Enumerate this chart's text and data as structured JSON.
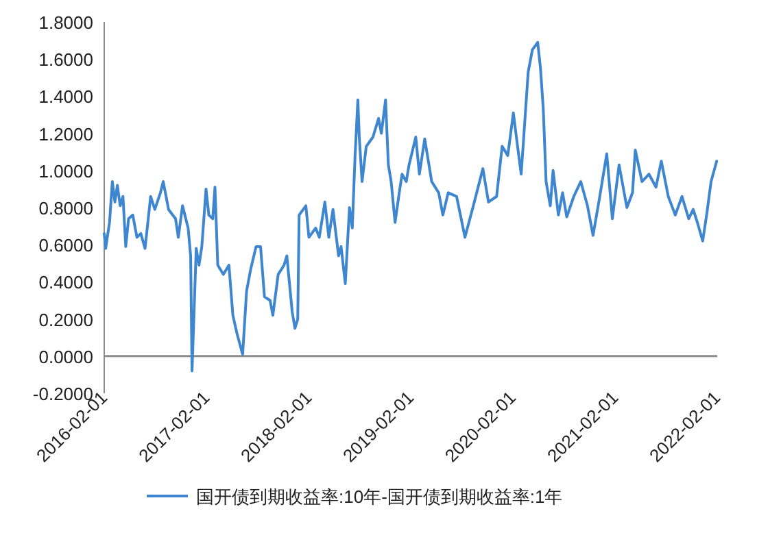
{
  "chart_data": {
    "type": "line",
    "x": [
      "2016-02-01",
      "2016-02-06",
      "2016-02-20",
      "2016-03-01",
      "2016-03-10",
      "2016-03-19",
      "2016-03-29",
      "2016-04-08",
      "2016-04-18",
      "2016-04-28",
      "2016-05-13",
      "2016-05-28",
      "2016-06-11",
      "2016-06-26",
      "2016-07-16",
      "2016-07-31",
      "2016-08-20",
      "2016-08-30",
      "2016-09-18",
      "2016-10-13",
      "2016-10-23",
      "2016-11-07",
      "2016-11-27",
      "2016-12-06",
      "2016-12-11",
      "2016-12-26",
      "2017-01-05",
      "2017-01-15",
      "2017-01-30",
      "2017-02-09",
      "2017-02-23",
      "2017-03-03",
      "2017-03-13",
      "2017-04-02",
      "2017-04-22",
      "2017-05-06",
      "2017-05-21",
      "2017-06-10",
      "2017-06-24",
      "2017-07-09",
      "2017-07-28",
      "2017-08-13",
      "2017-08-27",
      "2017-09-16",
      "2017-09-26",
      "2017-10-15",
      "2017-11-05",
      "2017-11-15",
      "2017-12-04",
      "2017-12-14",
      "2017-12-24",
      "2017-12-29",
      "2018-01-22",
      "2018-02-02",
      "2018-02-26",
      "2018-03-11",
      "2018-03-31",
      "2018-04-14",
      "2018-04-29",
      "2018-05-19",
      "2018-05-28",
      "2018-06-12",
      "2018-06-27",
      "2018-07-07",
      "2018-07-17",
      "2018-07-27",
      "2018-08-01",
      "2018-08-11",
      "2018-08-26",
      "2018-09-19",
      "2018-10-09",
      "2018-10-19",
      "2018-11-03",
      "2018-11-13",
      "2018-11-23",
      "2018-12-07",
      "2018-12-22",
      "2019-01-01",
      "2019-01-16",
      "2019-01-26",
      "2019-02-19",
      "2019-03-04",
      "2019-03-23",
      "2019-04-17",
      "2019-05-12",
      "2019-05-27",
      "2019-06-15",
      "2019-07-15",
      "2019-08-14",
      "2019-09-13",
      "2019-10-17",
      "2019-11-06",
      "2019-12-05",
      "2019-12-25",
      "2020-01-14",
      "2020-02-03",
      "2020-02-18",
      "2020-03-02",
      "2020-03-12",
      "2020-03-27",
      "2020-04-11",
      "2020-04-30",
      "2020-05-10",
      "2020-05-20",
      "2020-05-30",
      "2020-06-14",
      "2020-06-24",
      "2020-07-13",
      "2020-07-28",
      "2020-08-12",
      "2020-09-06",
      "2020-10-01",
      "2020-10-25",
      "2020-11-14",
      "2020-12-08",
      "2021-01-02",
      "2021-01-22",
      "2021-02-15",
      "2021-03-15",
      "2021-04-04",
      "2021-04-14",
      "2021-05-08",
      "2021-06-02",
      "2021-06-27",
      "2021-07-16",
      "2021-08-10",
      "2021-09-04",
      "2021-09-28",
      "2021-10-22",
      "2021-11-07",
      "2021-11-22",
      "2021-12-11",
      "2021-12-26",
      "2022-01-10",
      "2022-01-30"
    ],
    "series": [
      {
        "name": "国开债到期收益率:10年-国开债到期收益率:1年",
        "color": "#3f86d0",
        "values": [
          0.66,
          0.58,
          0.72,
          0.94,
          0.83,
          0.92,
          0.81,
          0.86,
          0.59,
          0.74,
          0.76,
          0.64,
          0.66,
          0.58,
          0.86,
          0.79,
          0.88,
          0.94,
          0.79,
          0.74,
          0.64,
          0.81,
          0.69,
          0.54,
          -0.08,
          0.58,
          0.49,
          0.59,
          0.9,
          0.76,
          0.74,
          0.91,
          0.49,
          0.44,
          0.49,
          0.22,
          0.12,
          0.01,
          0.35,
          0.47,
          0.59,
          0.59,
          0.32,
          0.3,
          0.22,
          0.44,
          0.49,
          0.54,
          0.24,
          0.15,
          0.2,
          0.76,
          0.81,
          0.64,
          0.69,
          0.64,
          0.83,
          0.64,
          0.79,
          0.54,
          0.59,
          0.39,
          0.8,
          0.69,
          1.08,
          1.38,
          1.18,
          0.94,
          1.13,
          1.18,
          1.28,
          1.2,
          1.38,
          1.03,
          0.94,
          0.72,
          0.88,
          0.98,
          0.94,
          1.03,
          1.18,
          0.98,
          1.17,
          0.94,
          0.88,
          0.76,
          0.88,
          0.86,
          0.64,
          0.81,
          1.01,
          0.83,
          0.86,
          1.13,
          1.08,
          1.31,
          1.13,
          0.98,
          1.2,
          1.53,
          1.65,
          1.69,
          1.55,
          1.33,
          0.94,
          0.81,
          1.0,
          0.76,
          0.88,
          0.75,
          0.86,
          0.94,
          0.81,
          0.65,
          0.86,
          1.09,
          0.74,
          1.03,
          0.8,
          0.88,
          1.11,
          0.94,
          0.98,
          0.91,
          1.05,
          0.86,
          0.76,
          0.86,
          0.74,
          0.79,
          0.72,
          0.62,
          0.77,
          0.94,
          1.05
        ]
      }
    ],
    "xlim": [
      "2016-02-01",
      "2022-02-01"
    ],
    "xticks": [
      "2016-02-01",
      "2017-02-01",
      "2018-02-01",
      "2019-02-01",
      "2020-02-01",
      "2021-02-01",
      "2022-02-01"
    ],
    "ylim": [
      -0.2,
      1.8
    ],
    "yticks": [
      {
        "value": -0.2,
        "label": "-0.2000"
      },
      {
        "value": 0,
        "label": "0.0000"
      },
      {
        "value": 0.2,
        "label": "0.2000"
      },
      {
        "value": 0.4,
        "label": "0.4000"
      },
      {
        "value": 0.6,
        "label": "0.6000"
      },
      {
        "value": 0.8,
        "label": "0.8000"
      },
      {
        "value": 1.0,
        "label": "1.0000"
      },
      {
        "value": 1.2,
        "label": "1.2000"
      },
      {
        "value": 1.4,
        "label": "1.4000"
      },
      {
        "value": 1.6,
        "label": "1.6000"
      },
      {
        "value": 1.8,
        "label": "1.8000"
      }
    ],
    "grid": false,
    "legend": "bottom"
  }
}
